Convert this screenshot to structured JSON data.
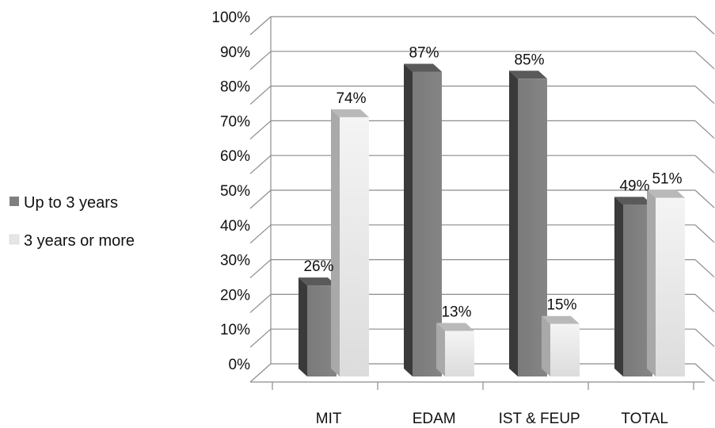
{
  "chart_data": {
    "type": "bar",
    "categories": [
      "MIT",
      "EDAM",
      "IST & FEUP",
      "TOTAL"
    ],
    "series": [
      {
        "name": "Up to 3 years",
        "values": [
          26,
          87,
          85,
          49
        ],
        "labels": [
          "26%",
          "87%",
          "85%",
          "49%"
        ],
        "color": "#7f7f7f"
      },
      {
        "name": "3 years or more",
        "values": [
          74,
          13,
          15,
          51
        ],
        "labels": [
          "74%",
          "13%",
          "15%",
          "51%"
        ],
        "color": "#e8e8e8"
      }
    ],
    "yticks": [
      "0%",
      "10%",
      "20%",
      "30%",
      "40%",
      "50%",
      "60%",
      "70%",
      "80%",
      "90%",
      "100%"
    ],
    "ylim": [
      0,
      100
    ],
    "grid": true,
    "legend_position": "left",
    "style": "3d-clustered-column"
  }
}
